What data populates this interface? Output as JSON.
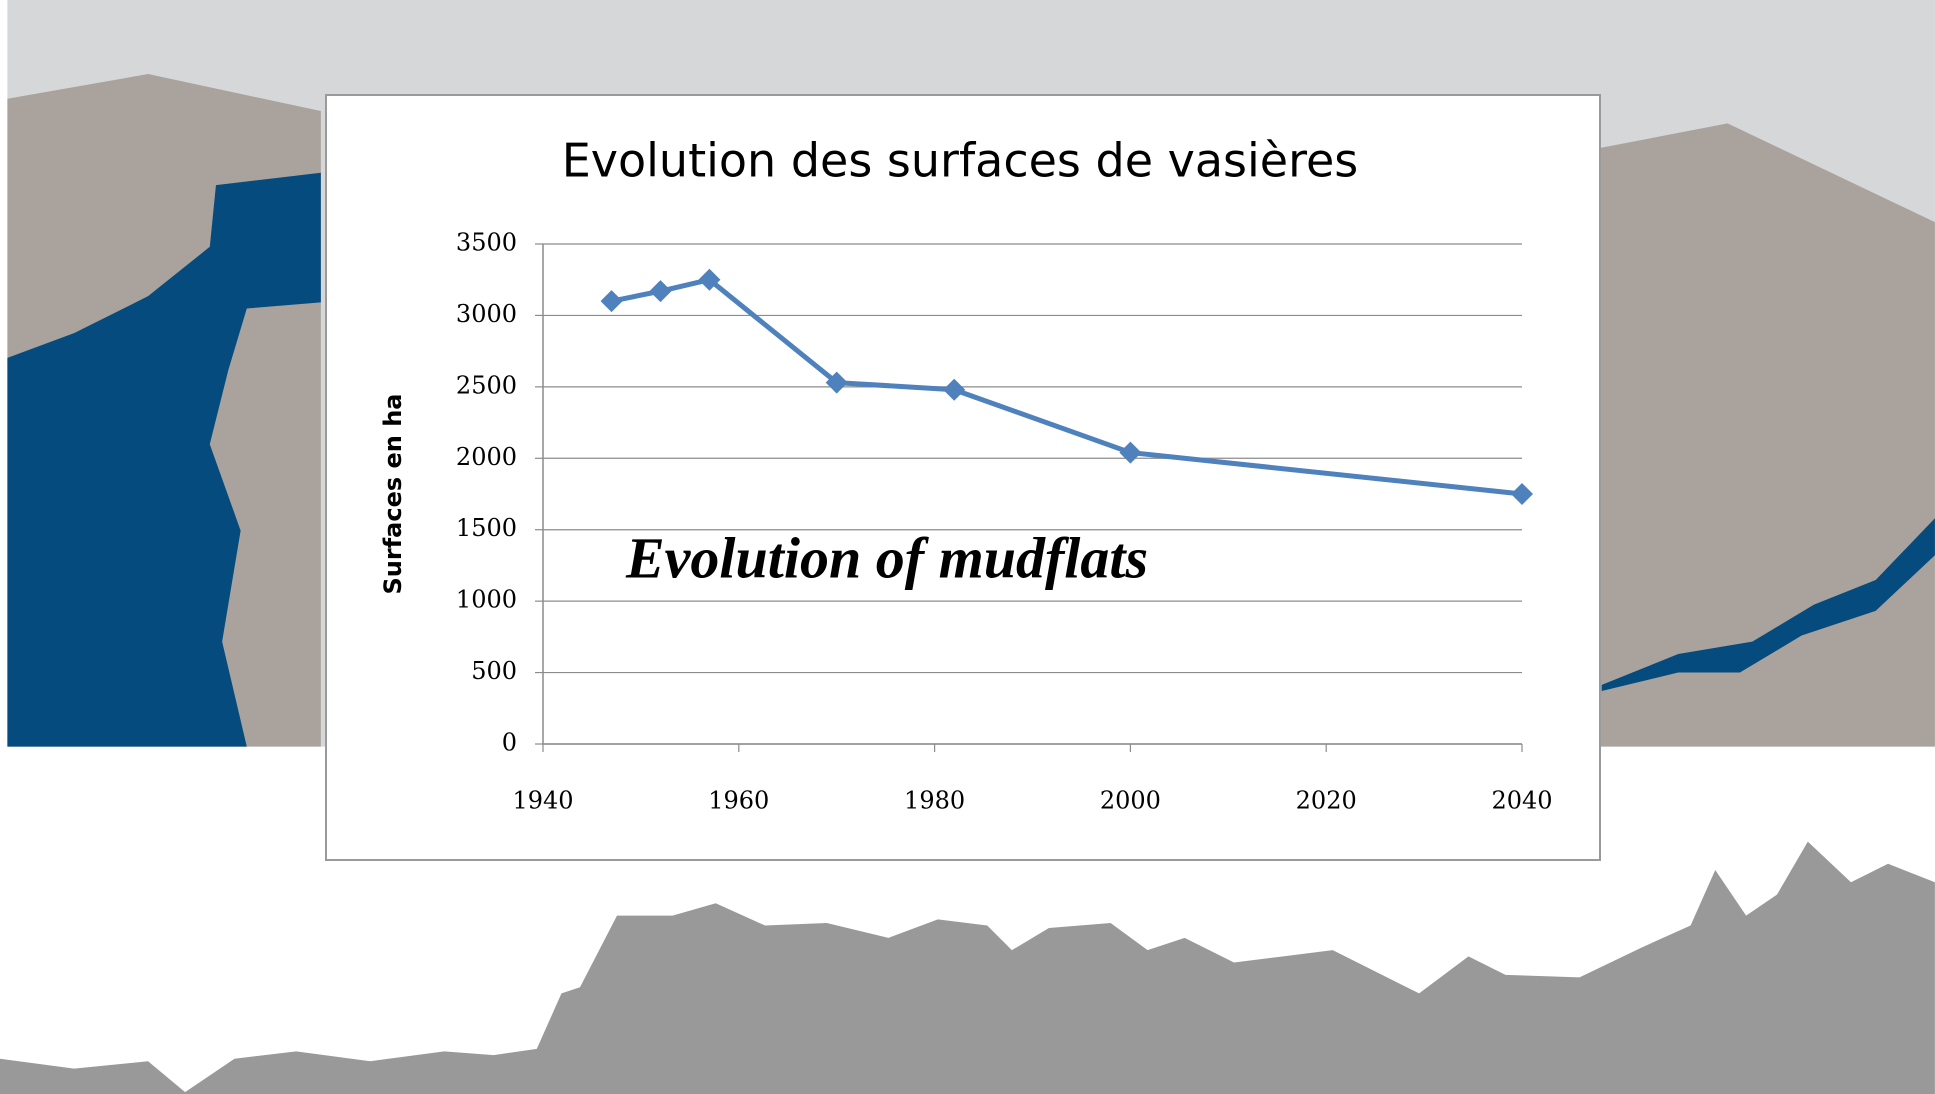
{
  "chart_data": {
    "type": "line",
    "title": "Evolution des surfaces de vasières",
    "y_label": "Surfaces en ha",
    "annotation": "Evolution of mudflats",
    "x": [
      1947,
      1952,
      1957,
      1970,
      1982,
      2000,
      2040
    ],
    "values": [
      3100,
      3170,
      3250,
      2530,
      2480,
      2040,
      1750
    ],
    "color": "#4f81bd",
    "xlim": [
      1940,
      2040
    ],
    "xticks": [
      1940,
      1960,
      1980,
      2000,
      2020,
      2040
    ],
    "ylim": [
      0,
      3500
    ],
    "yticks": [
      0,
      500,
      1000,
      1500,
      2000,
      2500,
      3000,
      3500
    ],
    "grid": true
  }
}
